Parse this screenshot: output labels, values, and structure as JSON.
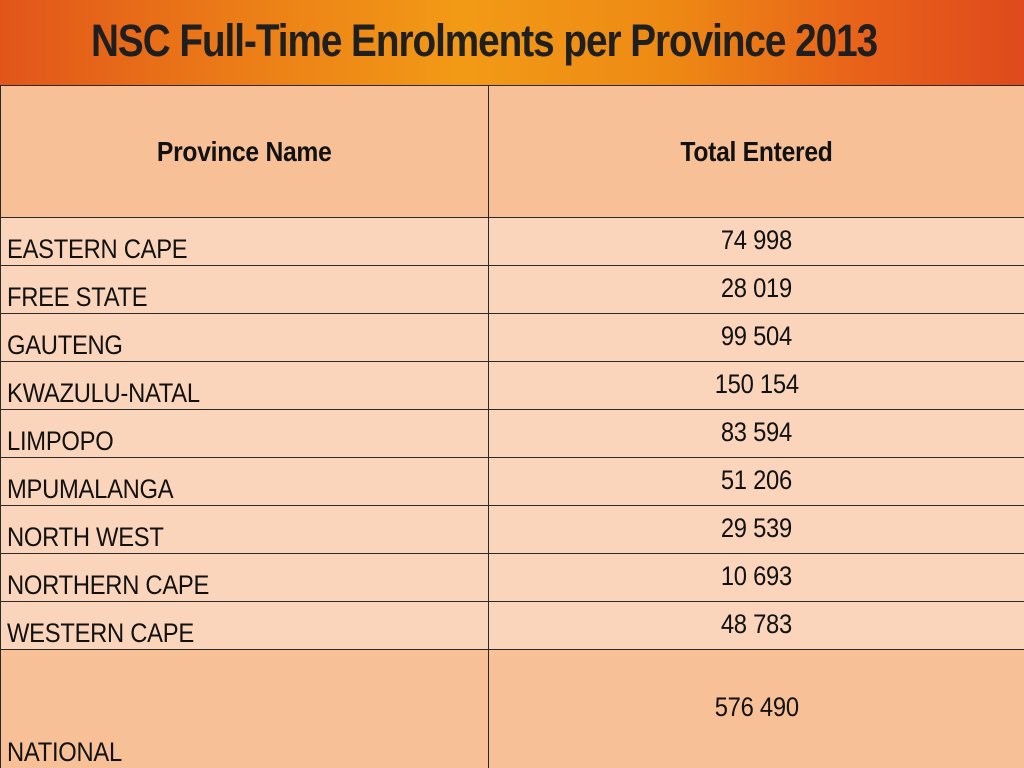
{
  "title": "NSC Full-Time Enrolments per Province 2013",
  "colors": {
    "title_bar_start": "#e2551a",
    "title_bar_mid": "#f29a16",
    "header_fill": "#f8c096",
    "row_fill": "#fad5bc",
    "border": "#2a2a2a"
  },
  "table": {
    "headers": [
      "Province Name",
      "Total Entered"
    ],
    "rows": [
      {
        "province": "EASTERN CAPE",
        "total": "74 998"
      },
      {
        "province": "FREE STATE",
        "total": "28 019"
      },
      {
        "province": "GAUTENG",
        "total": "99 504"
      },
      {
        "province": "KWAZULU-NATAL",
        "total": "150 154"
      },
      {
        "province": "LIMPOPO",
        "total": "83 594"
      },
      {
        "province": "MPUMALANGA",
        "total": "51 206"
      },
      {
        "province": "NORTH WEST",
        "total": "29 539"
      },
      {
        "province": "NORTHERN CAPE",
        "total": "10 693"
      },
      {
        "province": "WESTERN CAPE",
        "total": "48 783"
      }
    ],
    "footer": {
      "province": "NATIONAL",
      "total": "576 490"
    }
  }
}
